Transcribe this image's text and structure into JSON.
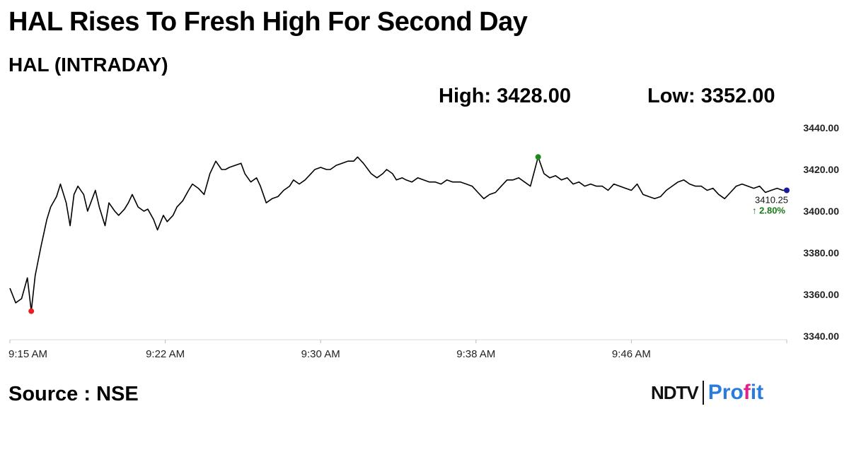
{
  "headline": "HAL Rises To Fresh High For Second Day",
  "subtitle": "HAL (INTRADAY)",
  "high_label": "High: 3428.00",
  "low_label": "Low: 3352.00",
  "source": "Source : NSE",
  "brand": {
    "left": "NDTV",
    "right_a": "Pro",
    "right_dot": "f",
    "right_b": "it"
  },
  "colors": {
    "line": "#000000",
    "low_marker": "#e82020",
    "high_marker": "#1a8a1a",
    "last_marker": "#1a1aa0",
    "change": "#1a7a1a",
    "brand_blue": "#2a7bde",
    "brand_pink": "#e0218a"
  },
  "chart_data": {
    "type": "line",
    "x_unit": "minutes after 9:15 AM",
    "xlim": [
      0,
      40
    ],
    "ylim": [
      3340,
      3440
    ],
    "y_ticks": [
      3440,
      3420,
      3400,
      3380,
      3360,
      3340
    ],
    "y_tick_labels": [
      "3440.00",
      "3420.00",
      "3400.00",
      "3380.00",
      "3360.00",
      "3340.00"
    ],
    "x_ticks": [
      0,
      8,
      16,
      24,
      32
    ],
    "x_tick_labels": [
      "9:15 AM",
      "9:22 AM",
      "9:30 AM",
      "9:38 AM",
      "9:46 AM"
    ],
    "last_value_label": "3410.25",
    "change_label": "↑ 2.80%",
    "low_point": {
      "x": 1.1,
      "y": 3352
    },
    "high_point": {
      "x": 27.2,
      "y": 3426
    },
    "last_point": {
      "x": 40.0,
      "y": 3410
    },
    "series": [
      {
        "x": [
          0,
          0.3,
          0.6,
          0.9,
          1.1,
          1.3,
          1.6,
          1.9,
          2.1,
          2.4,
          2.6,
          2.9,
          3.1,
          3.3,
          3.5,
          3.8,
          4.0,
          4.2,
          4.4,
          4.6,
          4.9,
          5.1,
          5.4,
          5.6,
          5.9,
          6.1,
          6.3,
          6.6,
          6.9,
          7.1,
          7.4,
          7.6,
          7.9,
          8.1,
          8.4,
          8.6,
          8.9,
          9.2,
          9.4,
          9.7,
          10.0,
          10.3,
          10.6,
          10.9,
          11.1,
          11.3,
          11.6,
          11.9,
          12.1,
          12.4,
          12.7,
          12.9,
          13.2,
          13.5,
          13.8,
          14.1,
          14.4,
          14.6,
          14.9,
          15.2,
          15.5,
          15.7,
          16.0,
          16.3,
          16.5,
          16.8,
          17.1,
          17.4,
          17.7,
          17.9,
          18.2,
          18.6,
          18.9,
          19.2,
          19.4,
          19.7,
          19.9,
          20.2,
          20.4,
          20.7,
          21.0,
          21.3,
          21.6,
          21.9,
          22.2,
          22.5,
          22.8,
          23.2,
          23.5,
          23.8,
          24.1,
          24.4,
          24.7,
          25.0,
          25.3,
          25.6,
          25.9,
          26.2,
          26.5,
          26.8,
          27.2,
          27.5,
          27.8,
          28.1,
          28.4,
          28.7,
          29.0,
          29.3,
          29.6,
          29.9,
          30.2,
          30.5,
          30.8,
          31.1,
          31.4,
          31.7,
          32.0,
          32.3,
          32.6,
          32.9,
          33.2,
          33.5,
          33.8,
          34.1,
          34.4,
          34.7,
          35.0,
          35.3,
          35.6,
          35.9,
          36.2,
          36.5,
          36.8,
          37.1,
          37.4,
          37.7,
          38.0,
          38.3,
          38.6,
          38.9,
          39.2,
          39.5,
          39.8,
          40.0
        ],
        "y": [
          3363,
          3356,
          3358,
          3368,
          3352,
          3369,
          3383,
          3396,
          3402,
          3407,
          3413,
          3404,
          3393,
          3408,
          3412,
          3408,
          3400,
          3405,
          3410,
          3402,
          3393,
          3404,
          3400,
          3398,
          3401,
          3404,
          3408,
          3402,
          3400,
          3401,
          3396,
          3391,
          3398,
          3395,
          3398,
          3402,
          3405,
          3410,
          3413,
          3411,
          3408,
          3418,
          3424,
          3420,
          3420,
          3421,
          3422,
          3423,
          3418,
          3414,
          3416,
          3412,
          3404,
          3406,
          3407,
          3410,
          3412,
          3415,
          3413,
          3415,
          3418,
          3420,
          3421,
          3420,
          3420,
          3422,
          3423,
          3424,
          3424,
          3426,
          3423,
          3418,
          3416,
          3418,
          3420,
          3418,
          3415,
          3416,
          3415,
          3414,
          3416,
          3415,
          3414,
          3414,
          3413,
          3415,
          3414,
          3414,
          3413,
          3412,
          3409,
          3406,
          3408,
          3409,
          3412,
          3415,
          3415,
          3416,
          3414,
          3412,
          3426,
          3418,
          3416,
          3417,
          3415,
          3416,
          3413,
          3414,
          3412,
          3413,
          3412,
          3412,
          3410,
          3413,
          3412,
          3411,
          3410,
          3413,
          3408,
          3407,
          3406,
          3407,
          3410,
          3412,
          3414,
          3415,
          3413,
          3412,
          3412,
          3410,
          3411,
          3408,
          3406,
          3409,
          3412,
          3413,
          3412,
          3411,
          3412,
          3409,
          3410,
          3411,
          3410,
          3410
        ]
      }
    ]
  }
}
